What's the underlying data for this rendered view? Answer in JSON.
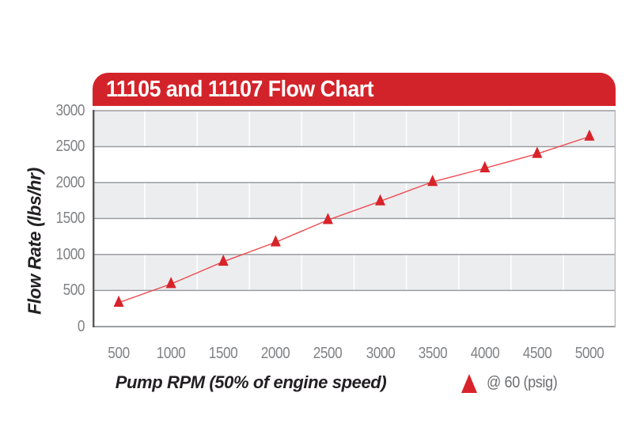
{
  "header": {
    "title": "11105 and 11107 Flow Chart",
    "bg_color": "#d3232a",
    "text_color": "#ffffff"
  },
  "chart_data": {
    "type": "line",
    "title": "11105 and 11107 Flow Chart",
    "xlabel": "Pump RPM (50% of engine speed)",
    "ylabel": "Flow Rate (lbs/hr)",
    "x": [
      500,
      1000,
      1500,
      2000,
      2500,
      3000,
      3500,
      4000,
      4500,
      5000
    ],
    "x_tick_labels": [
      "500",
      "1000",
      "1500",
      "2000",
      "2500",
      "3000",
      "3500",
      "4000",
      "4500",
      "5000"
    ],
    "y_tick_labels": [
      "0",
      "500",
      "1000",
      "1500",
      "2000",
      "2500",
      "3000"
    ],
    "ylim": [
      0,
      3000
    ],
    "y_tick_step": 500,
    "series": [
      {
        "name": "@ 60 (psig)",
        "marker": "triangle",
        "color": "#d8232a",
        "line_color": "#ef4a4f",
        "values": [
          330,
          590,
          900,
          1170,
          1480,
          1740,
          2010,
          2200,
          2400,
          2640
        ]
      }
    ],
    "band_fill_alternate": [
      "#ecedef",
      "#ffffff"
    ],
    "grid": "horizontal gridlines every 500 with alternating shaded bands and white column separators",
    "legend_position": "bottom-right"
  },
  "legend": {
    "label": "@ 60 (psig)",
    "marker_icon": "triangle-icon",
    "marker_color": "#d8232a",
    "text_color": "#6d6e71"
  },
  "colors": {
    "gridline": "#9b9da0",
    "axis_bottom": "#85878a",
    "axis_left": "#56575a",
    "border_right": "#b0b2b5",
    "tick_text": "#808285",
    "axis_title_text": "#232023",
    "background": "#ffffff"
  }
}
